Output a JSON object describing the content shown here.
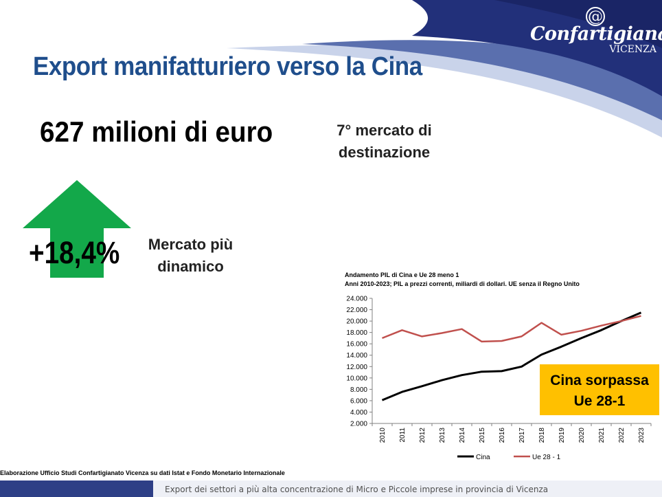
{
  "branding": {
    "logo_symbol": "@",
    "name": "Confartigianato",
    "location": "VICENZA"
  },
  "slide": {
    "title": "Export manifatturiero verso la Cina",
    "headline_value": "627 milioni di euro",
    "market_rank": [
      "7° mercato di",
      "destinazione"
    ],
    "growth_value": "+18,4%",
    "growth_label": [
      "Mercato più",
      "dinamico"
    ],
    "callout": [
      "Cina sorpassa",
      "Ue 28-1"
    ],
    "source": "Elaborazione Ufficio Studi Confartigianato Vicenza su dati Istat e Fondo Monetario Internazionale",
    "footer": "Export dei settori a più alta concentrazione di Micro e Piccole imprese in provincia di Vicenza"
  },
  "colors": {
    "brand_blue": "#1f4e8c",
    "arrow_green": "#13a84a",
    "callout_yellow": "#ffc000",
    "cina_line": "#000000",
    "ue_line": "#c0504d"
  },
  "chart_data": {
    "type": "line",
    "title": "Andamento PIL di Cina e Ue 28 meno 1",
    "subtitle": "Anni 2010-2023; PIL a prezzi correnti, miliardi di dollari. UE senza il Regno Unito",
    "x": [
      "2010",
      "2011",
      "2012",
      "2013",
      "2014",
      "2015",
      "2016",
      "2017",
      "2018",
      "2019",
      "2020",
      "2021",
      "2022",
      "2023"
    ],
    "series": [
      {
        "name": "Cina",
        "color": "#000000",
        "values": [
          6100,
          7550,
          8550,
          9600,
          10500,
          11100,
          11200,
          12000,
          14100,
          15500,
          17000,
          18400,
          20000,
          21500
        ]
      },
      {
        "name": "Ue 28 - 1",
        "color": "#c0504d",
        "values": [
          17000,
          18400,
          17300,
          17900,
          18600,
          16400,
          16500,
          17300,
          19700,
          17600,
          18300,
          19200,
          20000,
          20900
        ]
      }
    ],
    "ylim": [
      2000,
      24000
    ],
    "yticks": [
      "2.000",
      "4.000",
      "6.000",
      "8.000",
      "10.000",
      "12.000",
      "14.000",
      "16.000",
      "18.000",
      "20.000",
      "22.000",
      "24.000"
    ],
    "grid": false,
    "legend": "bottom"
  }
}
